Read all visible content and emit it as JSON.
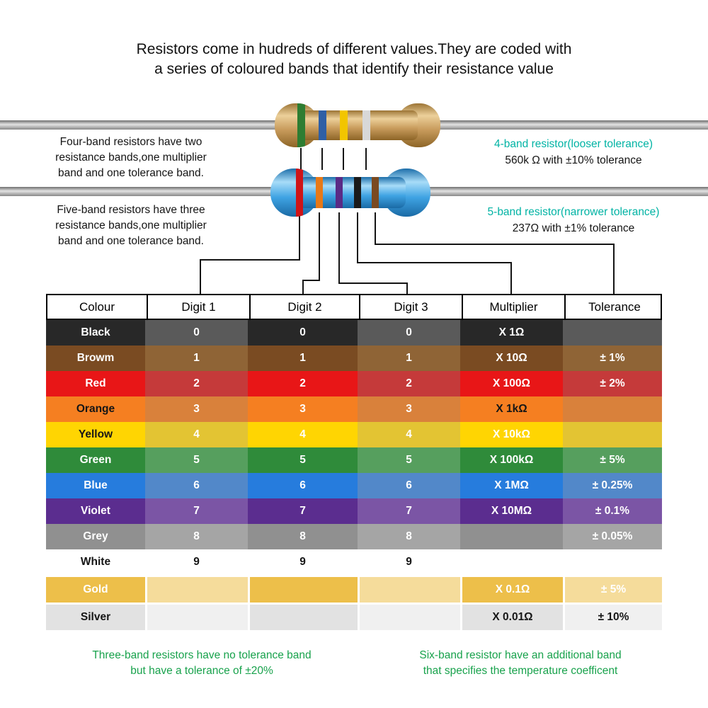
{
  "title_lines": [
    "Resistors come in hudreds of different values.They are coded with",
    "a series of coloured bands that identify their resistance value"
  ],
  "four_band": {
    "description": [
      "Four-band resistors have two",
      "resistance bands,one multiplier",
      "band and one tolerance band."
    ],
    "caption_title": "4-band resistor(looser tolerance)",
    "caption_value": "560k Ω with ±10% tolerance",
    "body_color": "#c89b5c",
    "bands": [
      {
        "name": "green",
        "hex": "#2e7d32"
      },
      {
        "name": "blue",
        "hex": "#2f5fa5"
      },
      {
        "name": "yellow",
        "hex": "#f2c500"
      },
      {
        "name": "silver",
        "hex": "#d8d8d8"
      }
    ]
  },
  "five_band": {
    "description": [
      "Five-band resistors have three",
      "resistance bands,one multiplier",
      "band and one tolerance band."
    ],
    "caption_title": "5-band resistor(narrower tolerance)",
    "caption_value": "237Ω with ±1% tolerance",
    "body_color": "#3fa3e3",
    "bands": [
      {
        "name": "red",
        "hex": "#cf1418"
      },
      {
        "name": "orange",
        "hex": "#e77918"
      },
      {
        "name": "violet",
        "hex": "#5a2b86"
      },
      {
        "name": "black",
        "hex": "#1a1a1a"
      },
      {
        "name": "brown",
        "hex": "#7a4a21"
      }
    ]
  },
  "table": {
    "headers": [
      "Colour",
      "Digit 1",
      "Digit 2",
      "Digit 3",
      "Multiplier",
      "Tolerance"
    ],
    "rows": [
      {
        "colour": "Black",
        "d1": "0",
        "d2": "0",
        "d3": "0",
        "mult": "X 1Ω",
        "tol": "",
        "base": "#282828",
        "alt": "#5a5a5a",
        "fg": "#ffffff"
      },
      {
        "colour": "Browm",
        "d1": "1",
        "d2": "1",
        "d3": "1",
        "mult": "X 10Ω",
        "tol": "± 1%",
        "base": "#7a4b22",
        "alt": "#8f6436",
        "fg": "#ffffff"
      },
      {
        "colour": "Red",
        "d1": "2",
        "d2": "2",
        "d3": "2",
        "mult": "X 100Ω",
        "tol": "± 2%",
        "base": "#e81617",
        "alt": "#c53a3a",
        "fg": "#ffffff"
      },
      {
        "colour": "Orange",
        "d1": "3",
        "d2": "3",
        "d3": "3",
        "mult": "X 1kΩ",
        "tol": "",
        "base": "#f57f21",
        "alt": "#d9813b",
        "fg": "#ffffff",
        "label_fg": "#161616",
        "mult_fg": "#161616"
      },
      {
        "colour": "Yellow",
        "d1": "4",
        "d2": "4",
        "d3": "4",
        "mult": "X 10kΩ",
        "tol": "",
        "base": "#ffd502",
        "alt": "#e3c433",
        "fg": "#ffffff",
        "label_fg": "#161616"
      },
      {
        "colour": "Green",
        "d1": "5",
        "d2": "5",
        "d3": "5",
        "mult": "X 100kΩ",
        "tol": "± 5%",
        "base": "#2f8b3a",
        "alt": "#569f5e",
        "fg": "#ffffff"
      },
      {
        "colour": "Blue",
        "d1": "6",
        "d2": "6",
        "d3": "6",
        "mult": "X 1MΩ",
        "tol": "± 0.25%",
        "base": "#267cdd",
        "alt": "#5288c9",
        "fg": "#ffffff"
      },
      {
        "colour": "Violet",
        "d1": "7",
        "d2": "7",
        "d3": "7",
        "mult": "X 10MΩ",
        "tol": "± 0.1%",
        "base": "#5b2d8f",
        "alt": "#7b55a5",
        "fg": "#ffffff"
      },
      {
        "colour": "Grey",
        "d1": "8",
        "d2": "8",
        "d3": "8",
        "mult": "",
        "tol": "± 0.05%",
        "base": "#909090",
        "alt": "#a5a5a5",
        "fg": "#ffffff"
      },
      {
        "colour": "White",
        "d1": "9",
        "d2": "9",
        "d3": "9",
        "mult": "",
        "tol": "",
        "base": "#ffffff",
        "alt": "#ffffff",
        "fg": "#161616"
      },
      {
        "colour": "Gold",
        "d1": "",
        "d2": "",
        "d3": "",
        "mult": "X 0.1Ω",
        "tol": "± 5%",
        "base": "#edbf4a",
        "alt": "#f5dc9b",
        "fg": "#ffffff",
        "separated": true
      },
      {
        "colour": "Silver",
        "d1": "",
        "d2": "",
        "d3": "",
        "mult": "X 0.01Ω",
        "tol": "± 10%",
        "base": "#e2e2e2",
        "alt": "#f0f0f0",
        "fg": "#161616",
        "separated": true
      }
    ]
  },
  "footnotes": {
    "three_band": [
      "Three-band resistors have no tolerance band",
      "but have a tolerance of ±20%"
    ],
    "six_band": [
      "Six-band resistor have an additional band",
      "that specifies the temperature coefficent"
    ]
  },
  "colors": {
    "teal": "#00b3a4",
    "footnote_green": "#18a24c",
    "line": "#141414"
  }
}
